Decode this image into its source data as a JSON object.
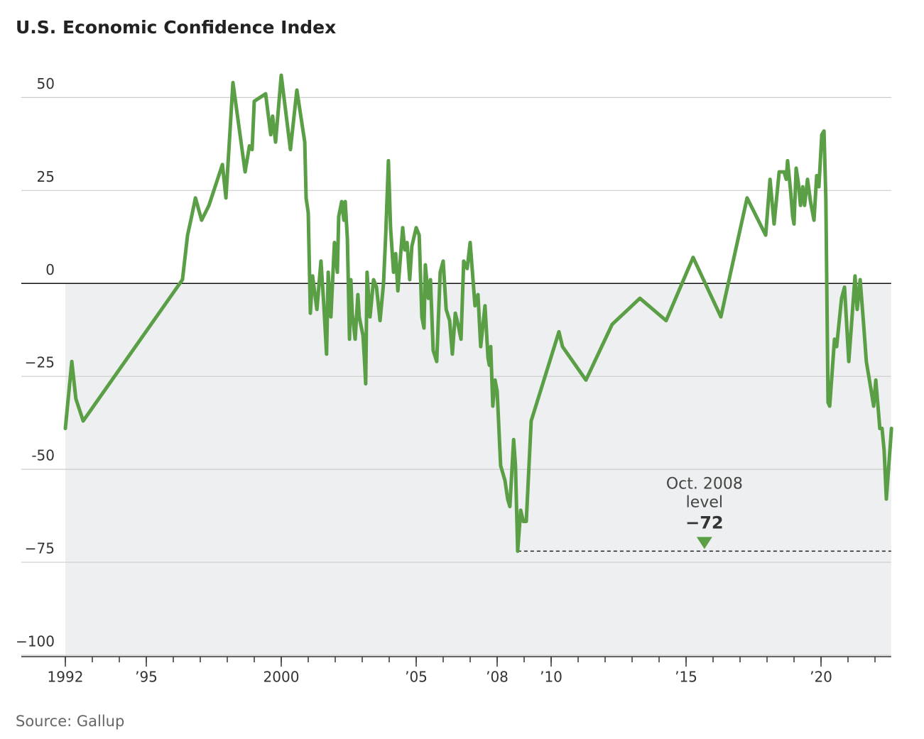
{
  "chart_data": {
    "type": "line",
    "title": "U.S. Economic Confidence Index",
    "source": "Source: Gallup",
    "x": [
      1992.0,
      1992.24,
      1992.39,
      1992.66,
      1996.34,
      1996.53,
      1996.68,
      1996.82,
      1997.05,
      1997.32,
      1997.82,
      1997.95,
      1998.21,
      1998.66,
      1998.82,
      1998.92,
      1999.0,
      1999.42,
      1999.61,
      1999.68,
      1999.79,
      2000.0,
      2000.34,
      2000.58,
      2000.87,
      2000.92,
      2001.0,
      2001.08,
      2001.16,
      2001.32,
      2001.47,
      2001.58,
      2001.68,
      2001.74,
      2001.84,
      2001.97,
      2002.08,
      2002.13,
      2002.24,
      2002.32,
      2002.37,
      2002.45,
      2002.53,
      2002.58,
      2002.63,
      2002.74,
      2002.84,
      2002.89,
      2003.03,
      2003.08,
      2003.13,
      2003.18,
      2003.29,
      2003.42,
      2003.53,
      2003.66,
      2003.79,
      2003.87,
      2003.97,
      2004.05,
      2004.16,
      2004.24,
      2004.32,
      2004.5,
      2004.58,
      2004.66,
      2004.76,
      2004.84,
      2005.0,
      2005.11,
      2005.21,
      2005.29,
      2005.34,
      2005.45,
      2005.53,
      2005.63,
      2005.76,
      2005.89,
      2006.0,
      2006.11,
      2006.24,
      2006.34,
      2006.45,
      2006.55,
      2006.66,
      2006.76,
      2006.89,
      2007.0,
      2007.18,
      2007.29,
      2007.39,
      2007.55,
      2007.66,
      2007.71,
      2007.76,
      2007.84,
      2007.92,
      2008.0,
      2008.13,
      2008.29,
      2008.39,
      2008.47,
      2008.61,
      2008.68,
      2008.76,
      2008.87,
      2008.97,
      2009.08,
      2009.26,
      2010.29,
      2010.42,
      2011.29,
      2012.26,
      2013.29,
      2014.26,
      2015.26,
      2016.29,
      2017.26,
      2017.95,
      2018.11,
      2018.26,
      2018.45,
      2018.63,
      2018.71,
      2018.76,
      2018.87,
      2018.95,
      2019.0,
      2019.08,
      2019.16,
      2019.24,
      2019.32,
      2019.39,
      2019.5,
      2019.61,
      2019.74,
      2019.84,
      2019.92,
      2020.03,
      2020.11,
      2020.18,
      2020.26,
      2020.32,
      2020.5,
      2020.58,
      2020.76,
      2020.87,
      2021.03,
      2021.26,
      2021.34,
      2021.45,
      2021.58,
      2021.68,
      2021.84,
      2021.95,
      2022.03,
      2022.11,
      2022.18,
      2022.26,
      2022.34,
      2022.42,
      2022.61
    ],
    "series": [
      {
        "name": "U.S. Economic Confidence Index",
        "color": "#5a9e46",
        "values": [
          -39,
          -21,
          -31,
          -37,
          1,
          13,
          18,
          23,
          17,
          21,
          32,
          23,
          54,
          30,
          37,
          36,
          49,
          51,
          40,
          45,
          38,
          56,
          36,
          52,
          38,
          23,
          19,
          -8,
          2,
          -7,
          6,
          -6,
          -19,
          3,
          -9,
          11,
          3,
          18,
          22,
          17,
          22,
          12,
          -15,
          1,
          -8,
          -15,
          -3,
          -9,
          -14,
          -20,
          -27,
          3,
          -9,
          1,
          -1,
          -10,
          0,
          13,
          33,
          15,
          3,
          8,
          -2,
          15,
          9,
          11,
          1,
          10,
          15,
          13,
          -9,
          -12,
          5,
          -4,
          1,
          -18,
          -21,
          3,
          6,
          -7,
          -10,
          -19,
          -8,
          -11,
          -15,
          6,
          4,
          11,
          -6,
          -3,
          -17,
          -6,
          -20,
          -22,
          -17,
          -33,
          -26,
          -29,
          -49,
          -53,
          -58,
          -60,
          -42,
          -49,
          -72,
          -61,
          -64,
          -64,
          -37,
          -13,
          -17,
          -26,
          -11,
          -4,
          -10,
          7,
          -9,
          23,
          13,
          28,
          16,
          30,
          30,
          28,
          33,
          25,
          18,
          16,
          31,
          27,
          21,
          26,
          21,
          28,
          22,
          17,
          29,
          26,
          40,
          41,
          23,
          -32,
          -33,
          -15,
          -17,
          -4,
          -1,
          -21,
          2,
          -7,
          1,
          -11,
          -21,
          -28,
          -33,
          -26,
          -33,
          -39,
          -39,
          -45,
          -58,
          -39
        ]
      }
    ],
    "xlim": [
      1992,
      2022.6
    ],
    "ylim": [
      -100,
      60
    ],
    "yticks": [
      {
        "value": -100,
        "label": "−100"
      },
      {
        "value": -75,
        "label": "−75"
      },
      {
        "value": -50,
        "label": "-50"
      },
      {
        "value": -25,
        "label": "−25"
      },
      0,
      25,
      50
    ],
    "xticks": [
      1992,
      {
        "value": 1995,
        "label": "’95"
      },
      2000,
      {
        "value": 2005,
        "label": "’05"
      },
      {
        "value": 2008,
        "label": "’08"
      },
      {
        "value": 2010,
        "label": "’10"
      },
      {
        "value": 2015,
        "label": "’15"
      },
      {
        "value": 2020,
        "label": "’20"
      }
    ],
    "xminorticks": [
      1992,
      1993,
      1994,
      1995,
      1996,
      1997,
      1998,
      1999,
      2000,
      2001,
      2002,
      2003,
      2004,
      2005,
      2006,
      2007,
      2008,
      2009,
      2010,
      2011,
      2012,
      2013,
      2014,
      2015,
      2016,
      2017,
      2018,
      2019,
      2020,
      2021,
      2022
    ],
    "grid": true,
    "shade_below": 0,
    "reference_line": {
      "value": -72,
      "x_start": 2008.76,
      "label_lines": [
        "Oct. 2008",
        "level"
      ],
      "value_label": "−72"
    }
  }
}
